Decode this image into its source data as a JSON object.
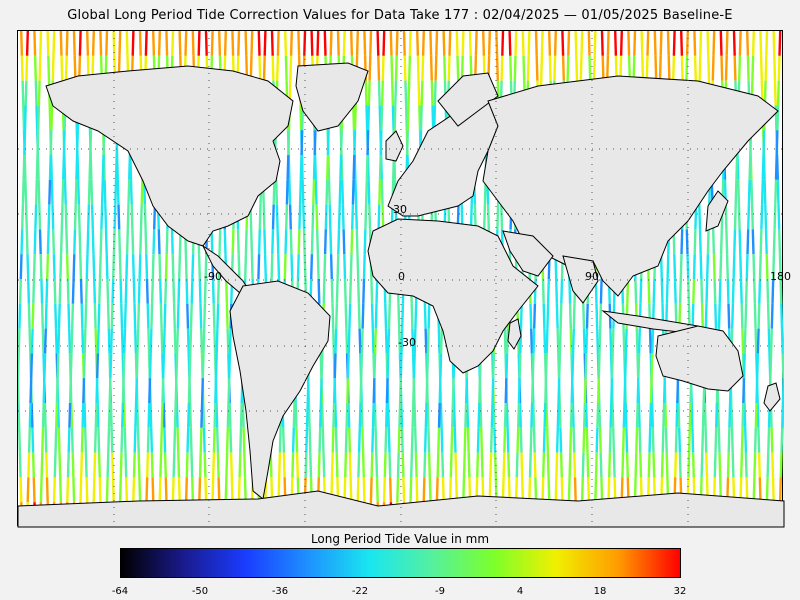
{
  "title": "Global Long Period Tide Correction Values for Data Take 177 : 02/04/2025 — 01/05/2025 Baseline-E",
  "map": {
    "lat_labels": [
      "30",
      "0",
      "-30"
    ],
    "lon_labels": [
      "-90",
      "0",
      "90",
      "180"
    ],
    "land_color": "#e8e8e8",
    "coast_color": "#000000"
  },
  "colorbar": {
    "title": "Long Period Tide Value in mm",
    "tick_labels": [
      "-64",
      "-50",
      "-36",
      "-22",
      "-9",
      "4",
      "18",
      "32"
    ],
    "min": -64,
    "max": 32,
    "colors": [
      "#000000",
      "#1a1a8c",
      "#1a3cff",
      "#1e90ff",
      "#19e6f0",
      "#55f0a0",
      "#7cff2b",
      "#f0f000",
      "#ff9c00",
      "#ff0000"
    ]
  }
}
